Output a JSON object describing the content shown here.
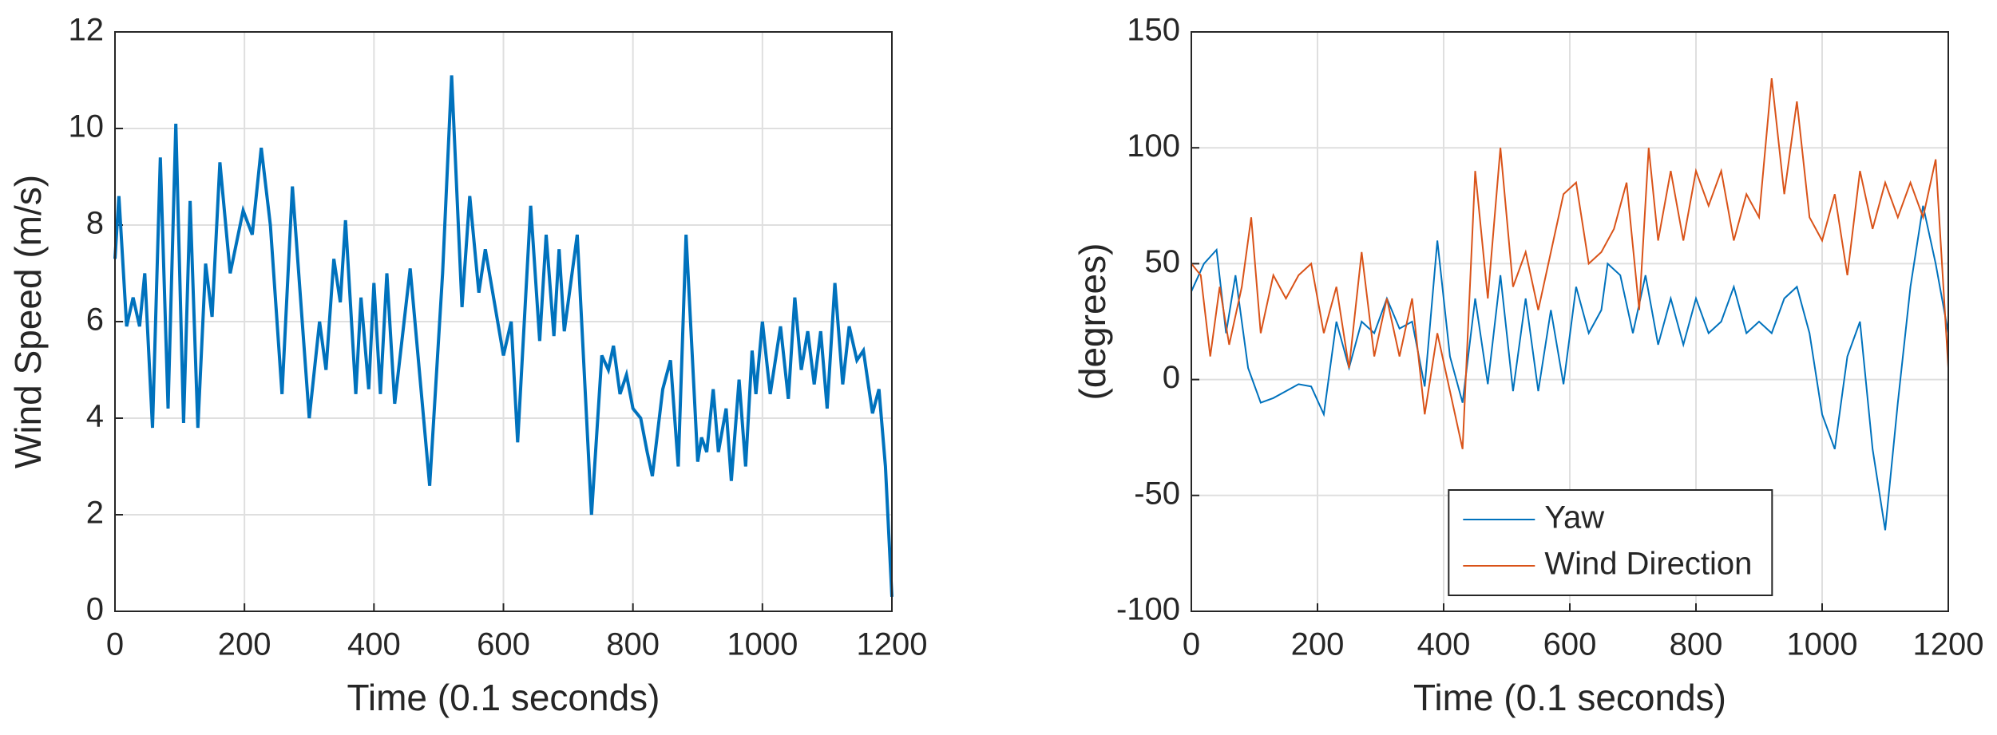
{
  "chart_data": [
    {
      "type": "line",
      "xlabel": "Time (0.1 seconds)",
      "ylabel": "Wind Speed (m/s)",
      "xlim": [
        0,
        1200
      ],
      "xticks": [
        0,
        200,
        400,
        600,
        800,
        1000,
        1200
      ],
      "ylim": [
        0,
        12
      ],
      "yticks": [
        0,
        2,
        4,
        6,
        8,
        10,
        12
      ],
      "grid": true,
      "series": [
        {
          "color": "#0072bd",
          "x": [
            0,
            6,
            18,
            28,
            38,
            46,
            58,
            70,
            82,
            94,
            106,
            116,
            128,
            140,
            150,
            162,
            178,
            198,
            212,
            226,
            240,
            258,
            274,
            300,
            316,
            326,
            338,
            348,
            356,
            372,
            380,
            392,
            400,
            410,
            420,
            432,
            456,
            486,
            506,
            520,
            536,
            548,
            562,
            572,
            600,
            612,
            622,
            642,
            656,
            666,
            678,
            686,
            694,
            714,
            736,
            752,
            762,
            770,
            780,
            790,
            800,
            812,
            822,
            830,
            846,
            858,
            870,
            882,
            900,
            906,
            914,
            924,
            932,
            944,
            952,
            964,
            974,
            984,
            990,
            1000,
            1012,
            1028,
            1040,
            1050,
            1060,
            1070,
            1080,
            1090,
            1100,
            1112,
            1124,
            1134,
            1146,
            1156,
            1170,
            1180,
            1190,
            1200
          ],
          "values": [
            7.3,
            8.6,
            5.9,
            6.5,
            5.9,
            7.0,
            3.8,
            9.4,
            4.2,
            10.1,
            3.9,
            8.5,
            3.8,
            7.2,
            6.1,
            9.3,
            7.0,
            8.3,
            7.8,
            9.6,
            8.0,
            4.5,
            8.8,
            4.0,
            6.0,
            5.0,
            7.3,
            6.4,
            8.1,
            4.5,
            6.5,
            4.6,
            6.8,
            4.5,
            7.0,
            4.3,
            7.1,
            2.6,
            7.0,
            11.1,
            6.3,
            8.6,
            6.6,
            7.5,
            5.3,
            6.0,
            3.5,
            8.4,
            5.6,
            7.8,
            5.7,
            7.5,
            5.8,
            7.8,
            2.0,
            5.3,
            5.0,
            5.5,
            4.5,
            4.9,
            4.2,
            4.0,
            3.3,
            2.8,
            4.6,
            5.2,
            3.0,
            7.8,
            3.1,
            3.6,
            3.3,
            4.6,
            3.3,
            4.2,
            2.7,
            4.8,
            3.0,
            5.4,
            4.5,
            6.0,
            4.5,
            5.9,
            4.4,
            6.5,
            5.0,
            5.8,
            4.7,
            5.8,
            4.2,
            6.8,
            4.7,
            5.9,
            5.2,
            5.4,
            4.1,
            4.6,
            3.0,
            0.3
          ]
        }
      ]
    },
    {
      "type": "line",
      "xlabel": "Time (0.1 seconds)",
      "ylabel": "(degrees)",
      "xlim": [
        0,
        1200
      ],
      "xticks": [
        0,
        200,
        400,
        600,
        800,
        1000,
        1200
      ],
      "ylim": [
        -100,
        150
      ],
      "yticks": [
        -100,
        -50,
        0,
        50,
        100,
        150
      ],
      "grid": true,
      "legend": "lower center",
      "series": [
        {
          "name": "Yaw",
          "color": "#0072bd",
          "x": [
            0,
            20,
            40,
            55,
            70,
            90,
            110,
            130,
            150,
            170,
            190,
            210,
            230,
            250,
            270,
            290,
            310,
            330,
            350,
            370,
            390,
            410,
            430,
            450,
            470,
            490,
            510,
            530,
            550,
            570,
            590,
            610,
            630,
            650,
            660,
            680,
            700,
            720,
            740,
            760,
            780,
            800,
            820,
            840,
            860,
            880,
            900,
            920,
            940,
            960,
            980,
            1000,
            1020,
            1040,
            1060,
            1080,
            1100,
            1120,
            1140,
            1160,
            1180,
            1200
          ],
          "values": [
            38,
            50,
            56,
            20,
            45,
            5,
            -10,
            -8,
            -5,
            -2,
            -3,
            -15,
            25,
            5,
            25,
            20,
            35,
            22,
            25,
            -3,
            60,
            10,
            -10,
            35,
            -2,
            45,
            -5,
            35,
            -5,
            30,
            -2,
            40,
            20,
            30,
            50,
            45,
            20,
            45,
            15,
            35,
            15,
            35,
            20,
            25,
            40,
            20,
            25,
            20,
            35,
            40,
            20,
            -15,
            -30,
            10,
            25,
            -30,
            -65,
            -10,
            40,
            75,
            50,
            20
          ]
        },
        {
          "name": "Wind Direction",
          "color": "#d95319",
          "x": [
            0,
            15,
            30,
            45,
            60,
            80,
            95,
            110,
            130,
            150,
            170,
            190,
            210,
            230,
            250,
            270,
            290,
            310,
            330,
            350,
            370,
            390,
            410,
            430,
            450,
            470,
            490,
            510,
            530,
            550,
            570,
            590,
            610,
            630,
            650,
            670,
            690,
            710,
            725,
            740,
            760,
            780,
            800,
            820,
            840,
            860,
            880,
            900,
            920,
            940,
            960,
            980,
            1000,
            1020,
            1040,
            1060,
            1080,
            1100,
            1120,
            1140,
            1160,
            1180,
            1200
          ],
          "values": [
            50,
            45,
            10,
            40,
            15,
            40,
            70,
            20,
            45,
            35,
            45,
            50,
            20,
            40,
            5,
            55,
            10,
            35,
            10,
            35,
            -15,
            20,
            -5,
            -30,
            90,
            35,
            100,
            40,
            55,
            30,
            55,
            80,
            85,
            50,
            55,
            65,
            85,
            30,
            100,
            60,
            90,
            60,
            90,
            75,
            90,
            60,
            80,
            70,
            130,
            80,
            120,
            70,
            60,
            80,
            45,
            90,
            65,
            85,
            70,
            85,
            70,
            95,
            5
          ]
        }
      ]
    }
  ]
}
